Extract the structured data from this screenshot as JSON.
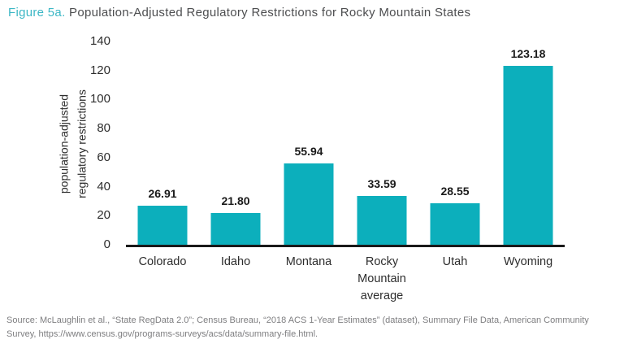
{
  "title": {
    "prefix": "Figure 5a.",
    "main": " Population-Adjusted Regulatory Restrictions for Rocky Mountain States"
  },
  "chart_data": {
    "type": "bar",
    "categories": [
      "Colorado",
      "Idaho",
      "Montana",
      "Rocky Mountain average",
      "Utah",
      "Wyoming"
    ],
    "values": [
      26.91,
      21.8,
      55.94,
      33.59,
      28.55,
      123.18
    ],
    "value_labels": [
      "26.91",
      "21.80",
      "55.94",
      "33.59",
      "28.55",
      "123.18"
    ],
    "title": "Population-Adjusted Regulatory Restrictions for Rocky Mountain States",
    "xlabel": "",
    "ylabel": "population-adjusted regulatory restrictions",
    "ylabel_lines": [
      "population-adjusted",
      "regulatory restrictions"
    ],
    "yticks": [
      0,
      20,
      40,
      60,
      80,
      100,
      120,
      140
    ],
    "ylim": [
      0,
      140
    ],
    "grid": false,
    "legend": "none",
    "bar_color": "#0cafbc"
  },
  "source": {
    "line1": "Source: McLaughlin et al., “State RegData 2.0”; Census Bureau, “2018 ACS 1-Year Estimates” (dataset), Summary File Data, American Community",
    "line2": "Survey, https://www.census.gov/programs-surveys/acs/data/summary-file.html."
  },
  "colors": {
    "accent_teal": "#0cafbc",
    "title_prefix_teal": "#3cb7c5",
    "title_text": "#4d4e50",
    "axis_text": "#2d2d2d",
    "value_text": "#1a1a1a",
    "source_text": "#7e7e80",
    "baseline": "#1a1a1a"
  }
}
